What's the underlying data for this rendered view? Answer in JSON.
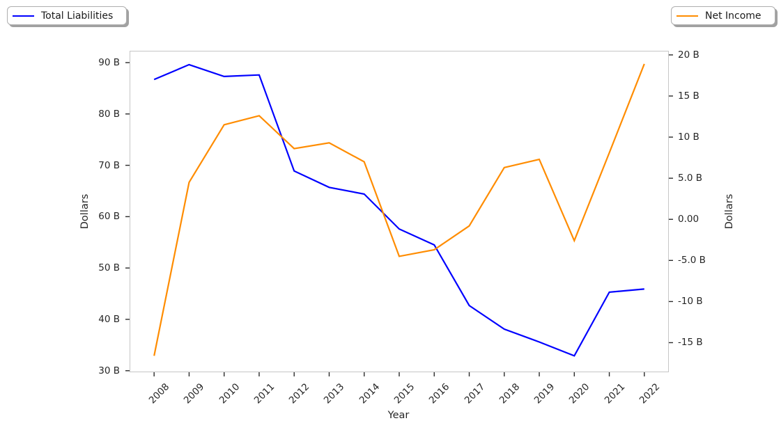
{
  "legend_left": {
    "label": "Total Liabilities",
    "color": "#0000ff"
  },
  "legend_right": {
    "label": "Net Income",
    "color": "#ff8c00"
  },
  "chart_data": {
    "type": "line",
    "title": "",
    "xlabel": "Year",
    "x": [
      2008,
      2009,
      2010,
      2011,
      2012,
      2013,
      2014,
      2015,
      2016,
      2017,
      2018,
      2019,
      2020,
      2021,
      2022
    ],
    "x_tick_labels": [
      "2008",
      "2009",
      "2010",
      "2011",
      "2012",
      "2013",
      "2014",
      "2015",
      "2016",
      "2017",
      "2018",
      "2019",
      "2020",
      "2021",
      "2022"
    ],
    "xlim": [
      2007.3,
      2022.7
    ],
    "grid": false,
    "series": [
      {
        "name": "Total Liabilities",
        "axis": "left",
        "color": "#0000ff",
        "unit": "billions of dollars",
        "values": [
          86.7,
          89.6,
          87.3,
          87.6,
          68.9,
          65.7,
          64.4,
          57.6,
          54.5,
          42.7,
          38.1,
          35.6,
          32.9,
          45.3,
          45.9
        ]
      },
      {
        "name": "Net Income",
        "axis": "right",
        "color": "#ff8c00",
        "unit": "billions of dollars",
        "values": [
          -16.6,
          4.5,
          11.5,
          12.6,
          8.6,
          9.3,
          7.0,
          -4.5,
          -3.7,
          -0.8,
          6.3,
          7.3,
          -2.6,
          8.1,
          18.9
        ]
      }
    ],
    "left_axis": {
      "label": "Dollars",
      "lim": [
        29.7,
        92.3
      ],
      "ticks": [
        30,
        40,
        50,
        60,
        70,
        80,
        90
      ],
      "tick_labels": [
        "30 B",
        "40 B",
        "50 B",
        "60 B",
        "70 B",
        "80 B",
        "90 B"
      ]
    },
    "right_axis": {
      "label": "Dollars",
      "lim": [
        -18.6,
        20.5
      ],
      "ticks": [
        -15,
        -10,
        -5,
        0,
        5,
        10,
        15,
        20
      ],
      "tick_labels": [
        "-15 B",
        "-10 B",
        "-5.0 B",
        "0.00",
        "5.0 B",
        "10 B",
        "15 B",
        "20 B"
      ]
    },
    "legend_position": [
      "outside upper left",
      "outside upper right"
    ]
  }
}
